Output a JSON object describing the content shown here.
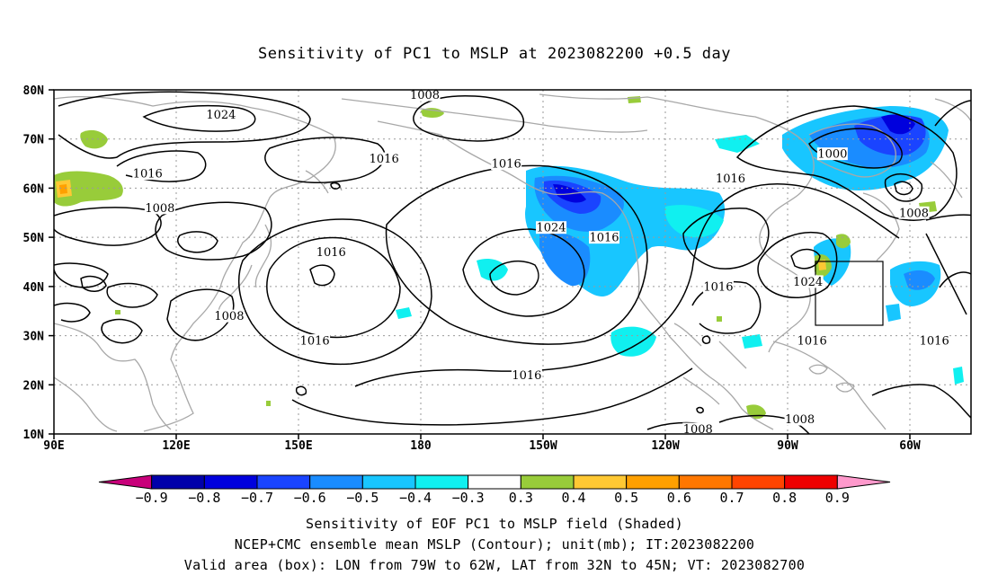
{
  "title": "Sensitivity of PC1 to MSLP at 2023082200 +0.5 day",
  "lat_labels": [
    "80N",
    "70N",
    "60N",
    "50N",
    "40N",
    "30N",
    "20N",
    "10N"
  ],
  "lon_labels": [
    "90E",
    "120E",
    "150E",
    "180",
    "150W",
    "120W",
    "90W",
    "60W"
  ],
  "contour_labels": [
    {
      "text": "1008",
      "lon": 181,
      "lat": 79
    },
    {
      "text": "1024",
      "lon": 131,
      "lat": 75
    },
    {
      "text": "1016",
      "lon": 113,
      "lat": 63
    },
    {
      "text": "1016",
      "lon": 171,
      "lat": 66
    },
    {
      "text": "1016",
      "lon": 201,
      "lat": 65
    },
    {
      "text": "1016",
      "lon": 256,
      "lat": 62
    },
    {
      "text": "1000",
      "lon": 281,
      "lat": 67
    },
    {
      "text": "1008",
      "lon": 116,
      "lat": 56
    },
    {
      "text": "1024",
      "lon": 212,
      "lat": 52
    },
    {
      "text": "1016",
      "lon": 225,
      "lat": 50
    },
    {
      "text": "1016",
      "lon": 158,
      "lat": 47
    },
    {
      "text": "1016",
      "lon": 253,
      "lat": 40
    },
    {
      "text": "1024",
      "lon": 275,
      "lat": 41
    },
    {
      "text": "1008",
      "lon": 133,
      "lat": 34
    },
    {
      "text": "1016",
      "lon": 154,
      "lat": 29
    },
    {
      "text": "1016",
      "lon": 206,
      "lat": 22
    },
    {
      "text": "1016",
      "lon": 276,
      "lat": 29
    },
    {
      "text": "1016",
      "lon": 306,
      "lat": 29
    },
    {
      "text": "1008",
      "lon": 301,
      "lat": 55
    },
    {
      "text": "1008",
      "lon": 248,
      "lat": 11
    },
    {
      "text": "1008",
      "lon": 273,
      "lat": 13
    }
  ],
  "colorbar": {
    "colors": [
      "#c8007a",
      "#0000aa",
      "#0000dd",
      "#1a44ff",
      "#1a8cff",
      "#18c6ff",
      "#10f0f0",
      "#ffffff",
      "#98cc3a",
      "#ffc833",
      "#ffa000",
      "#ff7700",
      "#ff4400",
      "#ee0000",
      "#ff99cc"
    ],
    "labels": [
      "−0.9",
      "−0.8",
      "−0.7",
      "−0.6",
      "−0.5",
      "−0.4",
      "−0.3",
      "0.3",
      "0.4",
      "0.5",
      "0.6",
      "0.7",
      "0.8",
      "0.9"
    ]
  },
  "footer": {
    "line1": "Sensitivity of EOF PC1 to MSLP field (Shaded)",
    "line2": "NCEP+CMC ensemble mean MSLP (Contour); unit(mb); IT:2023082200",
    "line3": "Valid area (box): LON from 79W to 62W, LAT from 32N to 45N; VT: 2023082700"
  }
}
